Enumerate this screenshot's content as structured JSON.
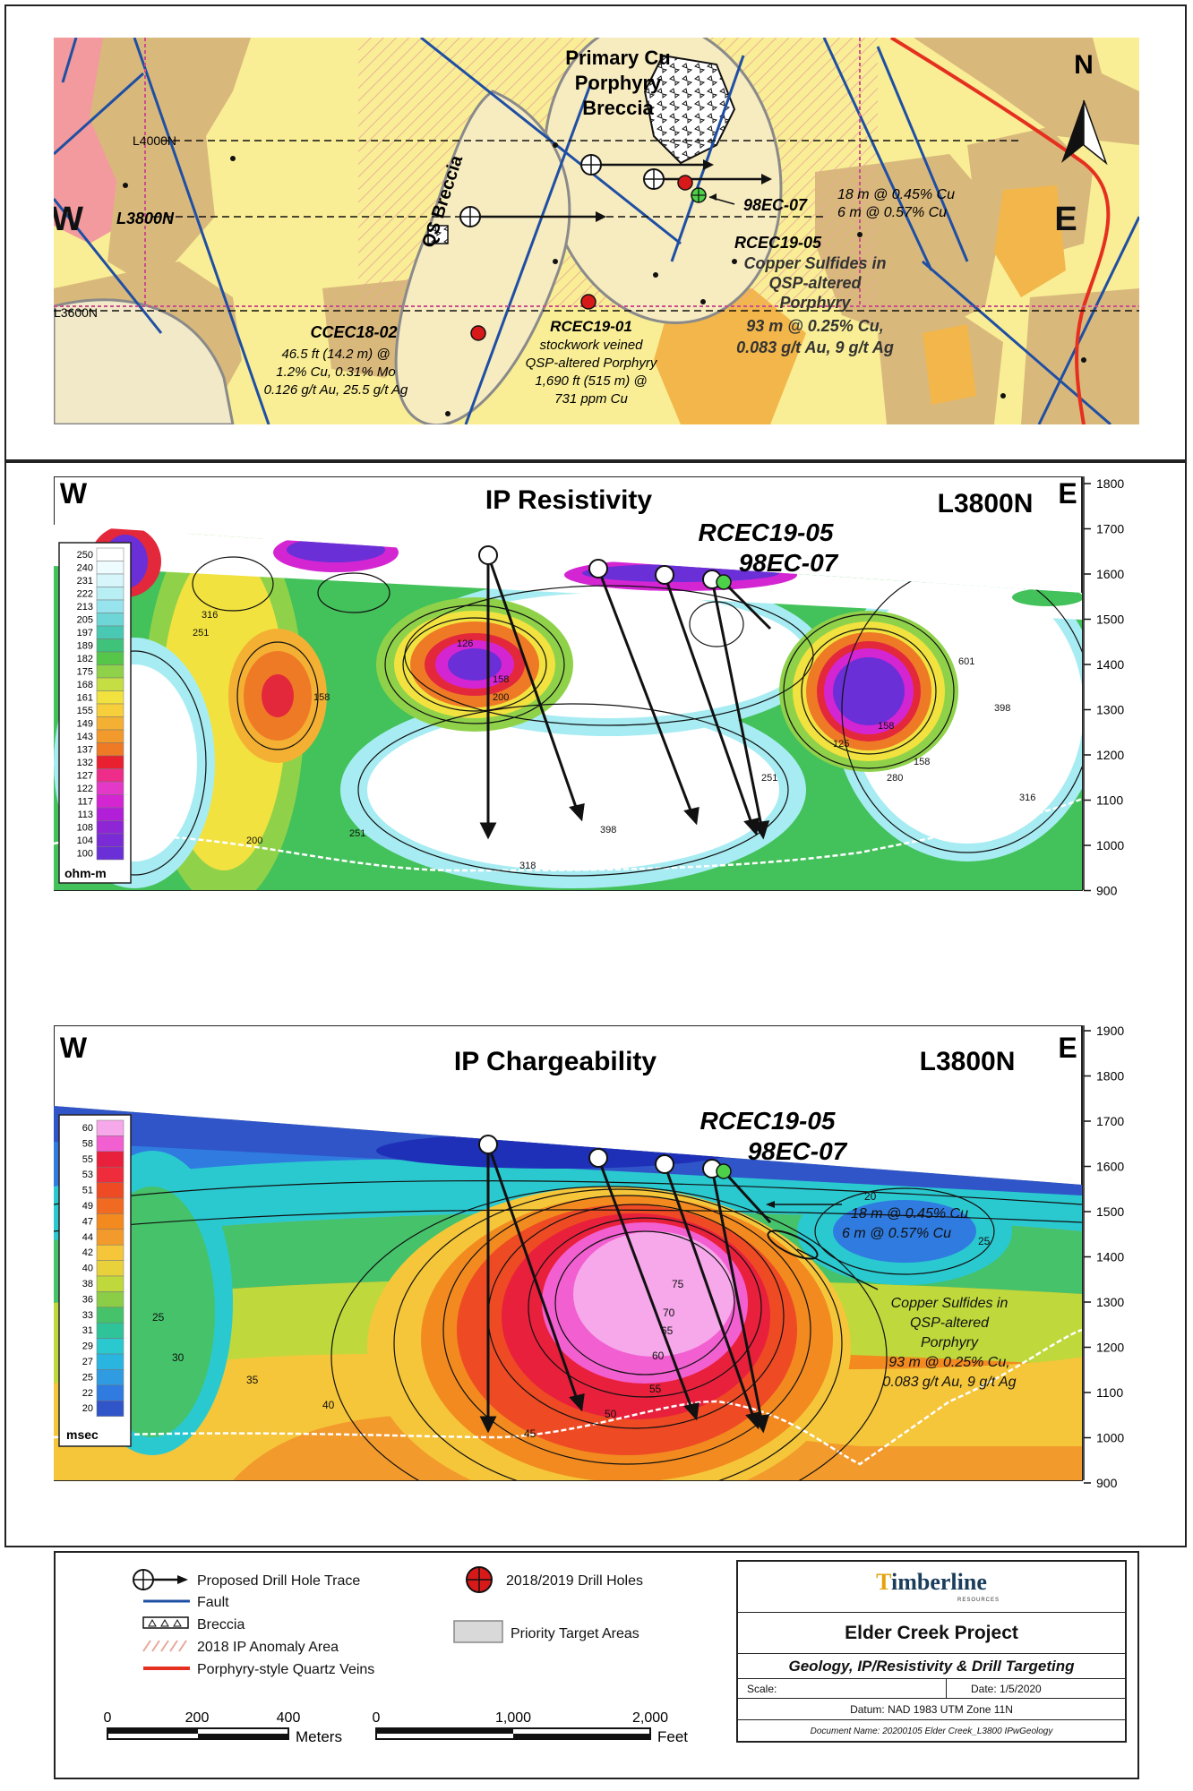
{
  "map_panel": {
    "labels": {
      "north": "N",
      "west": "W",
      "east": "E",
      "primary_breccia": [
        "Primary Cu",
        "Porphyry",
        "Breccia"
      ],
      "qs_breccia": "QS Breccia",
      "line_l4000n": "L4000N",
      "line_l3800n": "L3800N",
      "line_l3600n": "L3600N",
      "hole_98ec07": "98EC-07",
      "hole_98ec07_result": [
        "18 m @ 0.45% Cu",
        "6 m @ 0.57% Cu"
      ],
      "hole_rcec1905": "RCEC19-05",
      "copper_note": [
        "Copper Sulfides in",
        "QSP-altered",
        "Porphyry",
        "93 m @ 0.25% Cu,",
        "0.083 g/t Au, 9 g/t Ag"
      ],
      "hole_ccec1802": "CCEC18-02",
      "ccec1802_result": [
        "46.5 ft (14.2 m) @",
        "1.2% Cu, 0.31% Mo",
        "0.126 g/t Au, 25.5 g/t Ag"
      ],
      "hole_rcec1901": "RCEC19-01",
      "rcec1901_result": [
        "stockwork veined",
        "QSP-altered Porphyry",
        "1,690 ft (515 m) @",
        "731 ppm Cu"
      ]
    }
  },
  "resistivity": {
    "west": "W",
    "east": "E",
    "title": "IP Resistivity",
    "line": "L3800N",
    "hole_a": "RCEC19-05",
    "hole_b": "98EC-07",
    "unit": "ohm-m",
    "scale": [
      "250",
      "240",
      "231",
      "222",
      "213",
      "205",
      "197",
      "189",
      "182",
      "175",
      "168",
      "161",
      "155",
      "149",
      "143",
      "137",
      "132",
      "127",
      "122",
      "117",
      "113",
      "108",
      "104",
      "100"
    ],
    "elevations": [
      "1800",
      "1700",
      "1600",
      "1500",
      "1400",
      "1300",
      "1200",
      "1100",
      "1000",
      "900"
    ],
    "contour_labels": [
      "316",
      "251",
      "158",
      "200",
      "158",
      "158",
      "125",
      "158",
      "398",
      "601",
      "251",
      "280",
      "398",
      "318",
      "251",
      "200",
      "316",
      "126"
    ]
  },
  "chargeability": {
    "west": "W",
    "east": "E",
    "title": "IP Chargeability",
    "line": "L3800N",
    "hole_a": "RCEC19-05",
    "hole_b": "98EC-07",
    "unit": "msec",
    "scale": [
      "60",
      "58",
      "55",
      "53",
      "51",
      "49",
      "47",
      "44",
      "42",
      "40",
      "38",
      "36",
      "33",
      "31",
      "29",
      "27",
      "25",
      "22",
      "20"
    ],
    "elevations": [
      "1900",
      "1800",
      "1700",
      "1600",
      "1500",
      "1400",
      "1300",
      "1200",
      "1100",
      "1000",
      "900"
    ],
    "result_a": [
      "18 m @ 0.45% Cu",
      "6 m @ 0.57% Cu"
    ],
    "copper_note": [
      "Copper Sulfides in",
      "QSP-altered",
      "Porphyry",
      "93 m @ 0.25% Cu,",
      "0.083 g/t Au, 9 g/t Ag"
    ],
    "contour_labels": [
      "75",
      "70",
      "65",
      "60",
      "55",
      "50",
      "45",
      "40",
      "35",
      "30",
      "25",
      "20",
      "25"
    ]
  },
  "legend": {
    "proposed": "Proposed Drill Hole Trace",
    "fault": "Fault",
    "breccia": "Breccia",
    "ip_anomaly": "2018 IP Anomaly Area",
    "quartz_veins": "Porphyry-style Quartz Veins",
    "drill_holes": "2018/2019 Drill Holes",
    "priority": "Priority Target Areas",
    "scale_m": [
      "0",
      "200",
      "400"
    ],
    "scale_m_unit": "Meters",
    "scale_ft": [
      "0",
      "1,000",
      "2,000"
    ],
    "scale_ft_unit": "Feet"
  },
  "title_block": {
    "logo_first": "T",
    "logo_rest": "imberline",
    "logo_sub": "RESOURCES",
    "project": "Elder Creek Project",
    "subtitle": "Geology, IP/Resistivity & Drill Targeting",
    "scale_label": "Scale:",
    "date": "Date: 1/5/2020",
    "datum": "Datum:  NAD 1983 UTM Zone 11N",
    "document": "Document Name: 20200105 Elder Creek_L3800 IPwGeology"
  },
  "colors": {
    "map_yellow": "#f9ee95",
    "map_tan": "#d9b87c",
    "map_orange": "#f3b64a",
    "map_pink": "#f29a9d",
    "fault_blue": "#1f4fa3",
    "vein_red": "#e53020",
    "drill_red": "#d8191a",
    "drill_green": "#4cd148"
  }
}
